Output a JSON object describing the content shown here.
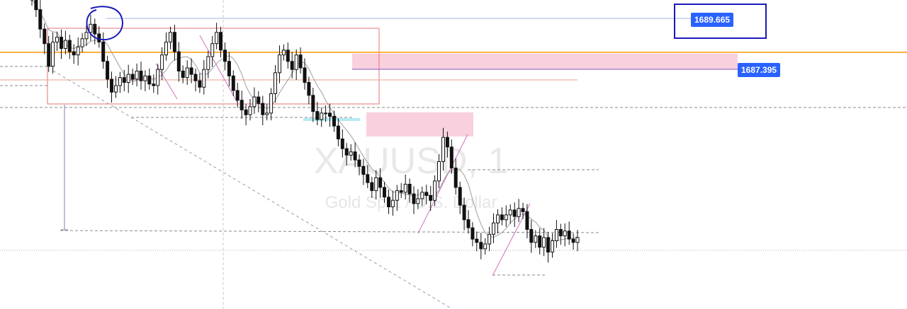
{
  "symbol": {
    "ticker": "XAUUSD, 1",
    "description": "Gold Spot / U.S. Dollar"
  },
  "price_labels": {
    "upper": "1689.665",
    "lower": "1687.395"
  },
  "colors": {
    "candle": "#111111",
    "ma_line": "#9e9e9e",
    "zone_fill": "#f8c8d8",
    "range_box": "#e57373",
    "horizontal_level": "#ff9800",
    "ray": "#7e57c2",
    "label_bg": "#2962ff",
    "annotation_blue": "#1a1ab8",
    "liquidity_bar": "#b2ebf2"
  },
  "chart_data": {
    "type": "candlestick",
    "symbol": "XAUUSD",
    "timeframe": "1",
    "price_levels": [
      1689.665,
      1687.395
    ],
    "series": [
      {
        "values": [
          1691.2,
          1690.6,
          1689.4,
          1688.5,
          1687.1,
          1688.6,
          1688.9,
          1688.2,
          1688.7,
          1688.0,
          1687.8,
          1688.3,
          1688.8,
          1689.2,
          1689.7,
          1689.1,
          1688.6,
          1687.4,
          1686.3,
          1685.5,
          1685.9,
          1686.4,
          1686.1,
          1686.6,
          1686.3,
          1686.8,
          1686.2,
          1686.5,
          1686.0,
          1685.9,
          1686.9,
          1687.8,
          1688.6,
          1689.2,
          1688.0,
          1686.8,
          1686.4,
          1687.0,
          1686.6,
          1686.2,
          1685.8,
          1686.9,
          1687.7,
          1688.5,
          1689.2,
          1688.1,
          1687.4,
          1686.5,
          1685.6,
          1685.0,
          1684.4,
          1684.1,
          1684.6,
          1685.2,
          1684.8,
          1684.1,
          1684.2,
          1685.4,
          1686.7,
          1687.8,
          1688.1,
          1687.4,
          1686.9,
          1687.8,
          1687.0,
          1686.1,
          1685.3,
          1684.3,
          1683.8,
          1684.2,
          1684.2,
          1684.0,
          1683.4,
          1682.6,
          1682.0,
          1681.6,
          1681.8,
          1681.3,
          1680.9,
          1680.4,
          1679.9,
          1679.4,
          1680.2,
          1679.6,
          1679.0,
          1678.4,
          1678.8,
          1679.4,
          1679.3,
          1679.8,
          1679.2,
          1678.6,
          1678.9,
          1679.3,
          1679.1,
          1678.8,
          1680.0,
          1681.2,
          1682.7,
          1682.1,
          1680.8,
          1679.6,
          1678.5,
          1677.6,
          1677.1,
          1676.4,
          1676.2,
          1675.8,
          1676.1,
          1676.7,
          1677.4,
          1677.9,
          1677.6,
          1677.9,
          1678.2,
          1677.8,
          1678.3,
          1678.1,
          1677.0,
          1676.2,
          1676.6,
          1675.9,
          1676.5,
          1675.6,
          1676.3,
          1677.0,
          1676.6,
          1676.9,
          1676.4,
          1676.2,
          1676.5
        ]
      }
    ]
  }
}
